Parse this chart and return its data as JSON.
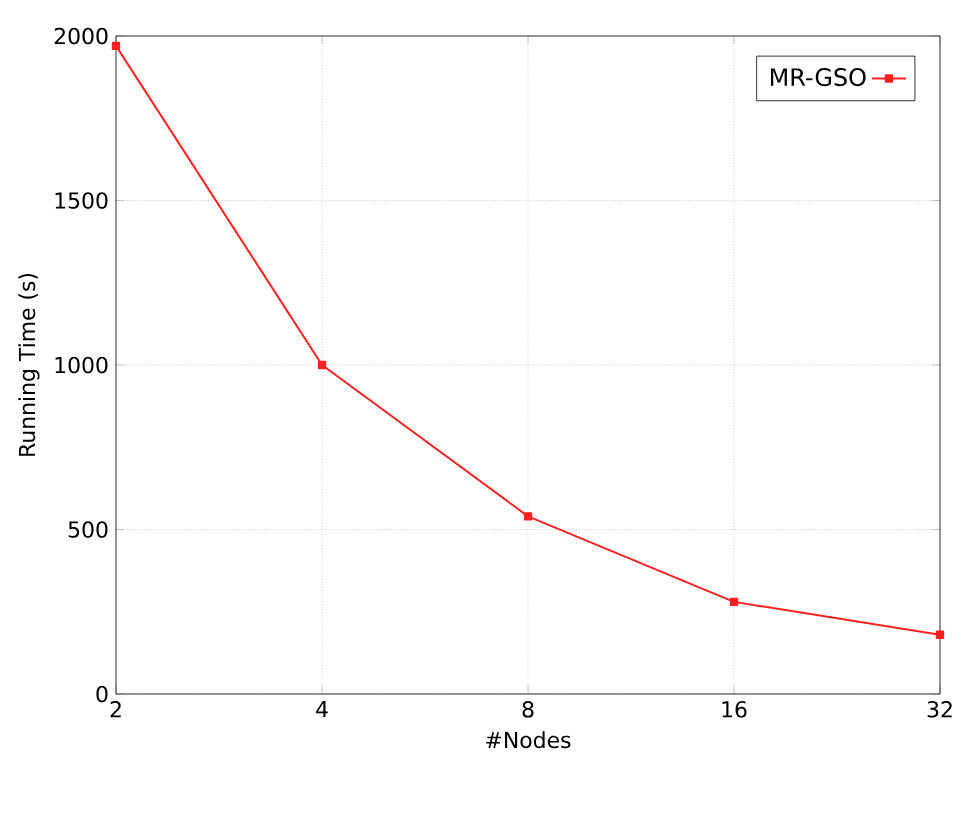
{
  "chart_data": {
    "type": "line",
    "xlabel": "#Nodes",
    "ylabel": "Running Time (s)",
    "x": [
      2,
      4,
      8,
      16,
      32
    ],
    "series": [
      {
        "name": "MR-GSO",
        "color": "#ff2020",
        "values": [
          1970,
          1000,
          540,
          280,
          180
        ]
      }
    ],
    "log": "x",
    "xlim": [
      2,
      32
    ],
    "xticks": [
      2,
      4,
      8,
      16,
      32
    ],
    "ylim": [
      0,
      2000
    ],
    "yticks": [
      0,
      500,
      1000,
      1500,
      2000
    ],
    "grid": true,
    "legend": "top right",
    "marker": "square",
    "line_style": "solid"
  }
}
